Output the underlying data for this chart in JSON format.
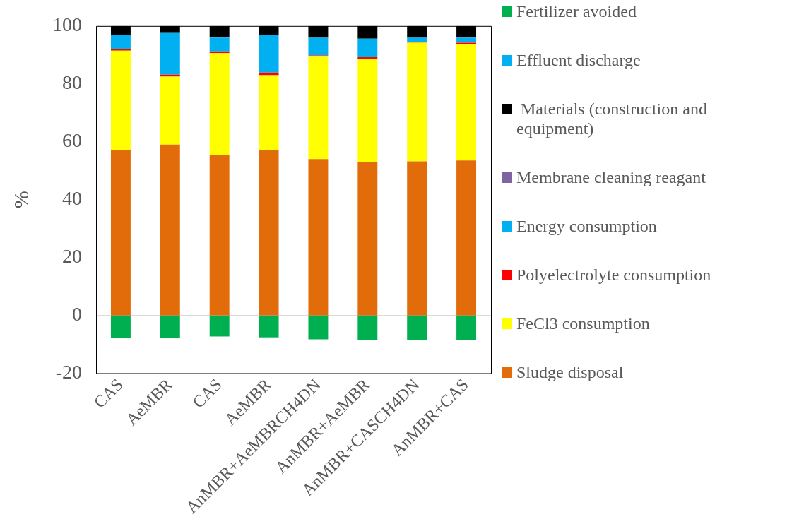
{
  "chart_data": {
    "type": "bar",
    "stacked": true,
    "ylabel": "%",
    "categories": [
      "CAS",
      "AeMBR",
      "CAS",
      "AeMBR",
      "AnMBR+AeMBRCH4DN",
      "AnMBR+AeMBR",
      "AnMBR+CASCH4DN",
      "AnMBR+CAS"
    ],
    "series": [
      {
        "name": "Sludge disposal",
        "color": "#e36c0a",
        "values": [
          57,
          59,
          55.5,
          57,
          54,
          53,
          53.2,
          53.5
        ]
      },
      {
        "name": "FeCl3 consumption",
        "color": "#ffff00",
        "values": [
          34.5,
          23.5,
          35.1,
          26,
          35.4,
          35.7,
          41,
          40.1
        ]
      },
      {
        "name": "Polyelectrolyte consumption",
        "color": "#ff0000",
        "values": [
          0.5,
          0.7,
          0.6,
          0.9,
          0.4,
          0.5,
          0.4,
          0.6
        ]
      },
      {
        "name": "Energy consumption",
        "color": "#00b0f0",
        "values": [
          5,
          14.4,
          4.8,
          13.1,
          6.1,
          6.4,
          1.3,
          1.8
        ]
      },
      {
        "name": "Membrane cleaning reagant",
        "color": "#8064a2",
        "values": [
          0,
          0,
          0,
          0,
          0,
          0,
          0,
          0
        ]
      },
      {
        "name": " Materials (construction and equipment)",
        "color": "#000000",
        "values": [
          3,
          2.4,
          4,
          3,
          4.1,
          4.4,
          4.1,
          4
        ]
      },
      {
        "name": "Effluent discharge",
        "color": "#00b0f0",
        "values": [
          0,
          0,
          0,
          0,
          0,
          0,
          0,
          0
        ]
      },
      {
        "name": "Fertilizer avoided",
        "color": "#00b050",
        "values": [
          -7.9,
          -7.9,
          -7.3,
          -7.6,
          -8.3,
          -8.6,
          -8.6,
          -8.6
        ]
      }
    ],
    "ylim": [
      -20,
      100
    ],
    "yticks": [
      -20,
      0,
      20,
      40,
      60,
      80,
      100
    ],
    "ref_lines": [
      {
        "axis": "y",
        "value": 0,
        "color": "#d9d9d9"
      }
    ],
    "legend": "right"
  }
}
